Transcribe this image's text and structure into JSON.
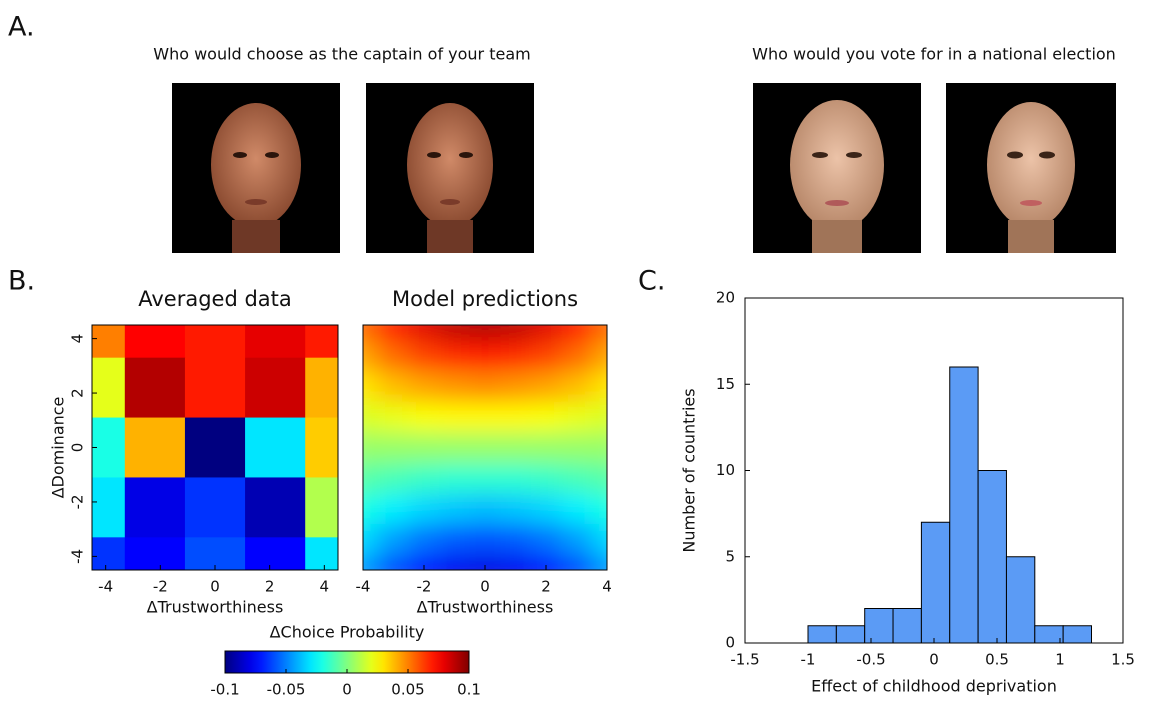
{
  "panel_labels": [
    "A.",
    "B.",
    "C."
  ],
  "captions": [
    "Who would choose as the captain of your team",
    "Who would you vote for in a national election"
  ],
  "chart_data": [
    {
      "type": "heatmap",
      "title": "Averaged data",
      "xlabel": "ΔTrustworthiness",
      "ylabel": "ΔDominance",
      "colormap": "jet",
      "zlim": [
        -0.1,
        0.1
      ],
      "x_edges": [
        -4.5,
        -3.3,
        -1.1,
        1.1,
        3.3,
        4.5
      ],
      "y_edges": [
        4.5,
        3.3,
        1.1,
        -1.1,
        -3.3,
        -4.5
      ],
      "xlim": [
        -4.5,
        4.5
      ],
      "ylim": [
        -4.5,
        4.5
      ],
      "xticks": [
        -4,
        -2,
        0,
        2,
        4
      ],
      "yticks": [
        -4,
        -2,
        0,
        2,
        4
      ],
      "z": [
        [
          0.05,
          0.075,
          0.07,
          0.08,
          0.07
        ],
        [
          0.02,
          0.09,
          0.07,
          0.085,
          0.04
        ],
        [
          -0.02,
          0.04,
          -0.1,
          -0.03,
          0.035
        ],
        [
          -0.03,
          -0.08,
          -0.065,
          -0.09,
          0.01
        ],
        [
          -0.065,
          -0.075,
          -0.06,
          -0.075,
          -0.03
        ]
      ],
      "colorbar": {
        "label": "ΔChoice Probability",
        "ticks": [
          -0.1,
          -0.05,
          0,
          0.05,
          0.1
        ]
      }
    },
    {
      "type": "smooth-heatmap",
      "title": "Model predictions",
      "xlabel": "ΔTrustworthiness",
      "colormap": "jet",
      "zlim": [
        -0.1,
        0.1
      ],
      "xlim": [
        -4,
        4
      ],
      "ylim": [
        -4,
        4
      ],
      "xticks": [
        -4,
        -2,
        0,
        2,
        4
      ],
      "x": [
        -4,
        -3,
        -2,
        -1,
        0,
        1,
        2,
        3,
        4
      ],
      "y": [
        4,
        3,
        2,
        1,
        0,
        -1,
        -2,
        -3,
        -4
      ],
      "z": [
        [
          0.055,
          0.07,
          0.081,
          0.088,
          0.09,
          0.088,
          0.081,
          0.07,
          0.055
        ],
        [
          0.043,
          0.054,
          0.062,
          0.067,
          0.069,
          0.067,
          0.062,
          0.054,
          0.043
        ],
        [
          0.03,
          0.038,
          0.043,
          0.046,
          0.048,
          0.046,
          0.043,
          0.038,
          0.03
        ],
        [
          0.018,
          0.021,
          0.024,
          0.026,
          0.026,
          0.026,
          0.024,
          0.021,
          0.018
        ],
        [
          0.005,
          0.005,
          0.005,
          0.005,
          0.005,
          0.005,
          0.005,
          0.005,
          0.005
        ],
        [
          -0.008,
          -0.011,
          -0.014,
          -0.016,
          -0.016,
          -0.016,
          -0.014,
          -0.011,
          -0.008
        ],
        [
          -0.02,
          -0.028,
          -0.033,
          -0.036,
          -0.038,
          -0.036,
          -0.033,
          -0.028,
          -0.02
        ],
        [
          -0.033,
          -0.044,
          -0.052,
          -0.057,
          -0.059,
          -0.057,
          -0.052,
          -0.044,
          -0.033
        ],
        [
          -0.045,
          -0.06,
          -0.071,
          -0.078,
          -0.08,
          -0.078,
          -0.071,
          -0.06,
          -0.045
        ]
      ]
    },
    {
      "type": "histogram",
      "xlabel": "Effect of childhood deprivation",
      "ylabel": "Number of countries",
      "color": "#5b9bf5",
      "bins": [
        -1,
        -0.775,
        -0.55,
        -0.325,
        -0.1,
        0.125,
        0.35,
        0.575,
        0.8,
        1.025,
        1.25
      ],
      "values": [
        1,
        1,
        2,
        2,
        7,
        16,
        10,
        5,
        1,
        1
      ],
      "xlim": [
        -1.5,
        1.5
      ],
      "ylim": [
        0,
        20
      ],
      "xticks": [
        -1.5,
        -1,
        -0.5,
        0,
        0.5,
        1,
        1.5
      ],
      "yticks": [
        0,
        5,
        10,
        15,
        20
      ]
    }
  ]
}
